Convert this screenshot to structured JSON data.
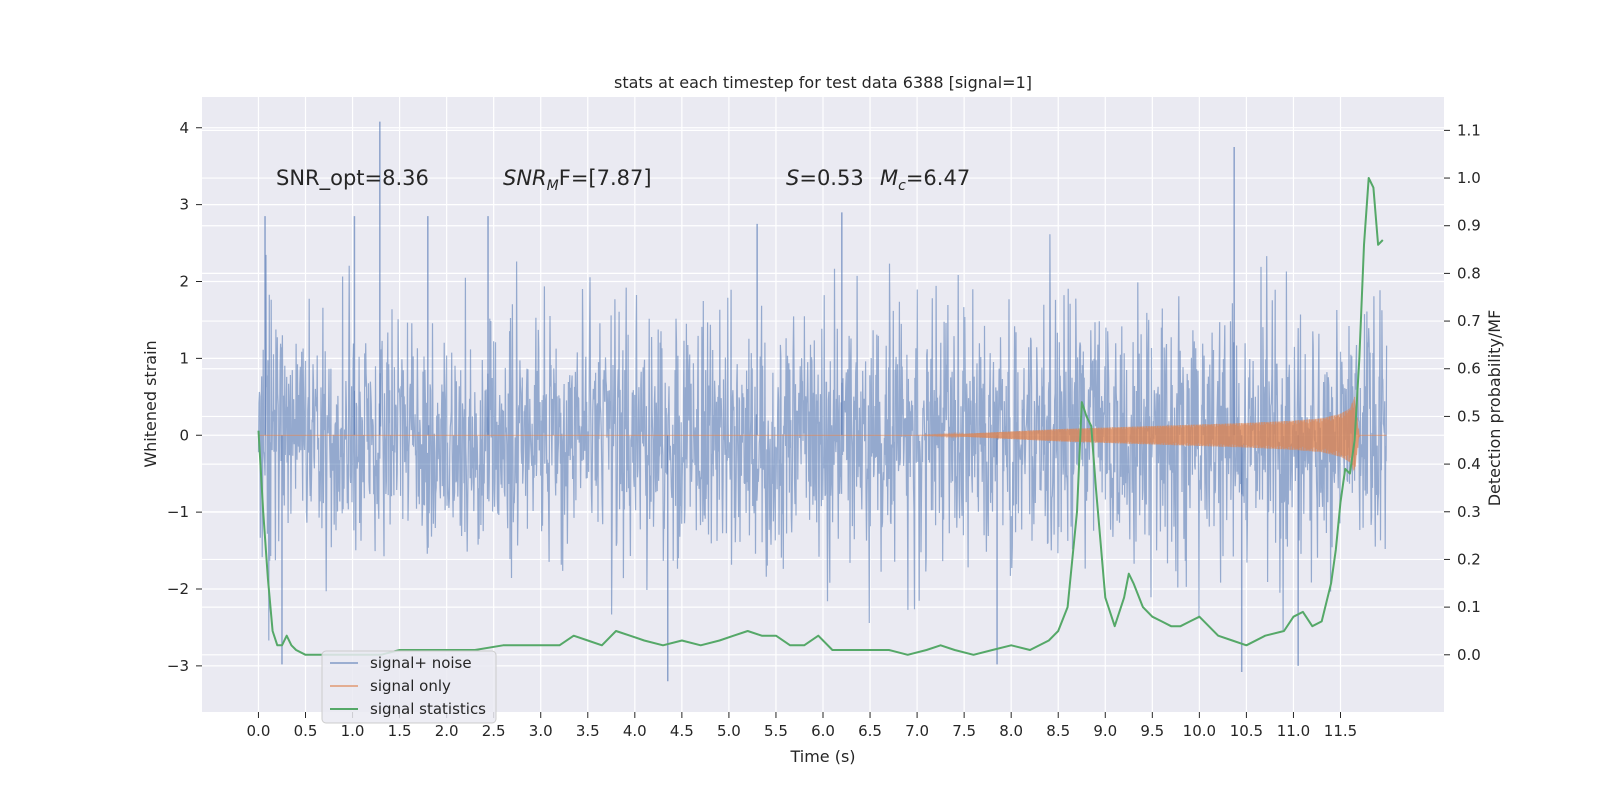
{
  "chart_data": {
    "type": "line",
    "title": "stats at each timestep for test data 6388 [signal=1]",
    "xlabel": "Time (s)",
    "ylabel": "Whitened strain",
    "y2label": "Detection probability/MF",
    "xlim": [
      -0.6,
      12.6
    ],
    "ylim": [
      -3.6,
      4.4
    ],
    "y2lim": [
      -0.12,
      1.17
    ],
    "xticks": [
      0.0,
      0.5,
      1.0,
      1.5,
      2.0,
      2.5,
      3.0,
      3.5,
      4.0,
      4.5,
      5.0,
      5.5,
      6.0,
      6.5,
      7.0,
      7.5,
      8.0,
      8.5,
      9.0,
      9.5,
      10.0,
      10.5,
      11.0,
      11.5
    ],
    "yticks": [
      -3,
      -2,
      -1,
      0,
      1,
      2,
      3,
      4
    ],
    "y2ticks": [
      0.0,
      0.1,
      0.2,
      0.3,
      0.4,
      0.5,
      0.6,
      0.7,
      0.8,
      0.9,
      1.0,
      1.1
    ],
    "grid": true,
    "legend_position": "lower-left",
    "annotations": {
      "snr_opt": "SNR_opt=8.36",
      "snr_mf_label": "SNR",
      "snr_mf_sub": "M",
      "snr_mf_value": "F=[7.87]",
      "s_label": "S",
      "s_value": "=0.53",
      "mc_label": "M",
      "mc_sub": "c",
      "mc_value": "=6.47"
    },
    "series": [
      {
        "name": "signal+ noise",
        "color": "#4c72b0",
        "axis": "left",
        "kind": "noise",
        "x_range": [
          0.0,
          11.99
        ],
        "typical_std": 0.78,
        "spikes": [
          {
            "x": 0.07,
            "y": 2.85
          },
          {
            "x": 1.29,
            "y": 4.08
          },
          {
            "x": 1.02,
            "y": 2.85
          },
          {
            "x": 1.8,
            "y": 2.85
          },
          {
            "x": 2.44,
            "y": 2.85
          },
          {
            "x": 5.3,
            "y": 2.75
          },
          {
            "x": 6.2,
            "y": 2.9
          },
          {
            "x": 10.37,
            "y": 3.75
          },
          {
            "x": 0.25,
            "y": -2.98
          },
          {
            "x": 4.35,
            "y": -3.2
          },
          {
            "x": 7.85,
            "y": -2.98
          },
          {
            "x": 10.45,
            "y": -3.08
          },
          {
            "x": 11.05,
            "y": -3.0
          }
        ]
      },
      {
        "name": "signal only",
        "color": "#dd8452",
        "axis": "left",
        "kind": "chirp",
        "envelope_x": [
          0.0,
          5.0,
          7.0,
          7.5,
          8.0,
          8.5,
          9.0,
          9.5,
          10.0,
          10.5,
          11.0,
          11.3,
          11.5,
          11.6,
          11.65,
          11.7,
          11.99
        ],
        "envelope_y": [
          0.0,
          0.0,
          0.0,
          0.02,
          0.05,
          0.08,
          0.1,
          0.12,
          0.14,
          0.16,
          0.19,
          0.22,
          0.28,
          0.35,
          0.5,
          0.0,
          0.0
        ]
      },
      {
        "name": "signal statistics",
        "color": "#55a868",
        "axis": "right",
        "x": [
          0.0,
          0.05,
          0.1,
          0.15,
          0.2,
          0.25,
          0.3,
          0.35,
          0.4,
          0.5,
          0.7,
          1.0,
          1.3,
          1.5,
          1.7,
          2.0,
          2.3,
          2.6,
          2.8,
          3.0,
          3.2,
          3.35,
          3.5,
          3.65,
          3.8,
          3.95,
          4.1,
          4.3,
          4.5,
          4.7,
          4.9,
          5.05,
          5.2,
          5.35,
          5.5,
          5.65,
          5.8,
          5.95,
          6.1,
          6.3,
          6.5,
          6.7,
          6.9,
          7.1,
          7.25,
          7.4,
          7.6,
          7.8,
          8.0,
          8.2,
          8.4,
          8.5,
          8.6,
          8.7,
          8.75,
          8.8,
          8.85,
          8.9,
          9.0,
          9.1,
          9.2,
          9.25,
          9.3,
          9.4,
          9.5,
          9.6,
          9.7,
          9.8,
          9.9,
          10.0,
          10.1,
          10.2,
          10.35,
          10.5,
          10.7,
          10.9,
          11.0,
          11.1,
          11.2,
          11.3,
          11.4,
          11.45,
          11.5,
          11.55,
          11.6,
          11.65,
          11.7,
          11.75,
          11.8,
          11.85,
          11.9,
          11.95
        ],
        "values": [
          0.47,
          0.3,
          0.16,
          0.05,
          0.02,
          0.02,
          0.04,
          0.02,
          0.01,
          0.0,
          0.0,
          0.0,
          0.0,
          0.01,
          0.01,
          0.01,
          0.01,
          0.02,
          0.02,
          0.02,
          0.02,
          0.04,
          0.03,
          0.02,
          0.05,
          0.04,
          0.03,
          0.02,
          0.03,
          0.02,
          0.03,
          0.04,
          0.05,
          0.04,
          0.04,
          0.02,
          0.02,
          0.04,
          0.01,
          0.01,
          0.01,
          0.01,
          0.0,
          0.01,
          0.02,
          0.01,
          0.0,
          0.01,
          0.02,
          0.01,
          0.03,
          0.05,
          0.1,
          0.3,
          0.53,
          0.5,
          0.48,
          0.35,
          0.12,
          0.06,
          0.12,
          0.17,
          0.15,
          0.1,
          0.08,
          0.07,
          0.06,
          0.06,
          0.07,
          0.08,
          0.06,
          0.04,
          0.03,
          0.02,
          0.04,
          0.05,
          0.08,
          0.09,
          0.06,
          0.07,
          0.15,
          0.22,
          0.32,
          0.39,
          0.38,
          0.45,
          0.62,
          0.86,
          1.0,
          0.98,
          0.86,
          0.87
        ]
      }
    ]
  }
}
